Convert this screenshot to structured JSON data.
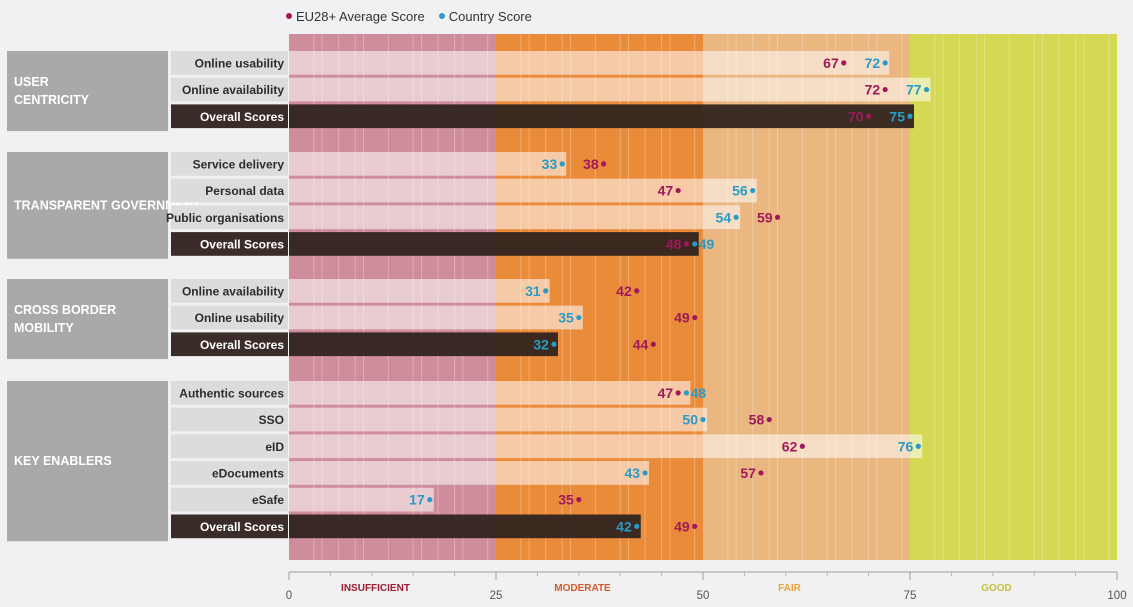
{
  "legend": {
    "eu_label": "EU28+ Average Score",
    "country_label": "Country Score",
    "eu_color": "#a0195a",
    "country_color": "#2a9bc4"
  },
  "chart_data": {
    "type": "bar",
    "xlim": [
      0,
      100
    ],
    "xticks": [
      0,
      25,
      50,
      75,
      100
    ],
    "bands": [
      {
        "label": "INSUFFICIENT",
        "from": 0,
        "to": 25,
        "color": "#cf8d9b",
        "label_color": "#9b1b30"
      },
      {
        "label": "MODERATE",
        "from": 25,
        "to": 50,
        "color": "#ea8b3a",
        "label_color": "#d2592a"
      },
      {
        "label": "FAIR",
        "from": 50,
        "to": 75,
        "color": "#eab780",
        "label_color": "#eaa53a"
      },
      {
        "label": "GOOD",
        "from": 75,
        "to": 100,
        "color": "#d4d853",
        "label_color": "#c2c23a"
      }
    ],
    "series": [
      {
        "name": "EU28+ Average Score",
        "key": "eu"
      },
      {
        "name": "Country Score",
        "key": "country"
      }
    ],
    "groups": [
      {
        "label": "USER CENTRICITY",
        "items": [
          {
            "label": "Online usability",
            "country": 72,
            "eu": 67,
            "overall": false
          },
          {
            "label": "Online availability",
            "country": 77,
            "eu": 72,
            "overall": false
          },
          {
            "label": "Overall Scores",
            "country": 75,
            "eu": 70,
            "overall": true
          }
        ]
      },
      {
        "label": "TRANSPARENT GOVERNMENT",
        "items": [
          {
            "label": "Service delivery",
            "country": 33,
            "eu": 38,
            "overall": false
          },
          {
            "label": "Personal data",
            "country": 56,
            "eu": 47,
            "overall": false
          },
          {
            "label": "Public organisations",
            "country": 54,
            "eu": 59,
            "overall": false
          },
          {
            "label": "Overall Scores",
            "country": 49,
            "eu": 48,
            "overall": true
          }
        ]
      },
      {
        "label": "CROSS BORDER MOBILITY",
        "items": [
          {
            "label": "Online availability",
            "country": 31,
            "eu": 42,
            "overall": false
          },
          {
            "label": "Online usability",
            "country": 35,
            "eu": 49,
            "overall": false
          },
          {
            "label": "Overall Scores",
            "country": 32,
            "eu": 44,
            "overall": true
          }
        ]
      },
      {
        "label": "KEY ENABLERS",
        "items": [
          {
            "label": "Authentic sources",
            "country": 48,
            "eu": 47,
            "overall": false
          },
          {
            "label": "SSO",
            "country": 50,
            "eu": 58,
            "overall": false
          },
          {
            "label": "eID",
            "country": 76,
            "eu": 62,
            "overall": false
          },
          {
            "label": "eDocuments",
            "country": 43,
            "eu": 57,
            "overall": false
          },
          {
            "label": "eSafe",
            "country": 17,
            "eu": 35,
            "overall": false
          },
          {
            "label": "Overall Scores",
            "country": 42,
            "eu": 49,
            "overall": true
          }
        ]
      }
    ]
  }
}
